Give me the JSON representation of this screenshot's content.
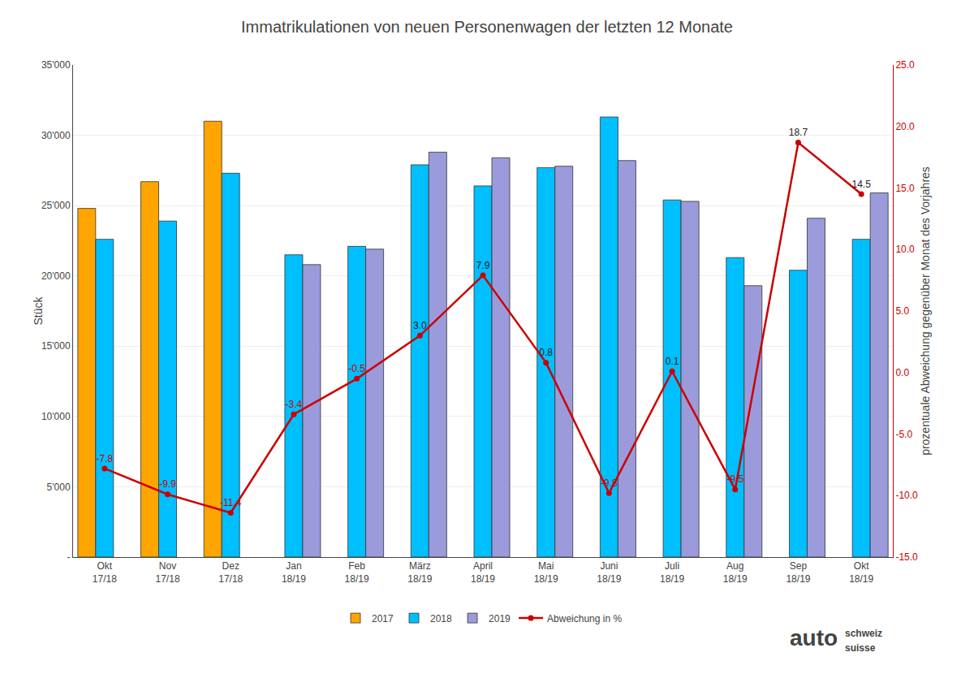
{
  "chart_data": {
    "type": "bar",
    "title": "Immatrikulationen von neuen Personenwagen der letzten 12 Monate",
    "categories": [
      "Okt\n17/18",
      "Nov\n17/18",
      "Dez\n17/18",
      "Jan\n18/19",
      "Feb\n18/19",
      "März\n18/19",
      "April\n18/19",
      "Mai\n18/19",
      "Juni\n18/19",
      "Juli\n18/19",
      "Aug\n18/19",
      "Sep\n18/19",
      "Okt\n18/19"
    ],
    "series": [
      {
        "name": "2017",
        "color": "#FFA500",
        "values": [
          24800,
          26700,
          31000,
          null,
          null,
          null,
          null,
          null,
          null,
          null,
          null,
          null,
          null
        ]
      },
      {
        "name": "2018",
        "color": "#00BFFF",
        "values": [
          22600,
          23900,
          27300,
          21500,
          22100,
          27900,
          26400,
          27700,
          31300,
          25400,
          21300,
          20400,
          22600
        ]
      },
      {
        "name": "2019",
        "color": "#9B9BDB",
        "values": [
          null,
          null,
          null,
          20800,
          21900,
          28800,
          28400,
          27800,
          28200,
          25300,
          19300,
          24100,
          25900
        ]
      },
      {
        "name": "Abweichung in %",
        "type": "line",
        "axis": "y2",
        "color": "#CC0000",
        "marker": "circle",
        "data_labels": true,
        "values": [
          -7.8,
          -9.9,
          -11.4,
          -3.4,
          -0.5,
          3.0,
          7.9,
          0.8,
          -9.8,
          0.1,
          -9.5,
          18.7,
          14.5
        ],
        "value_labels": [
          "-7.8",
          "-9.9",
          "-11.4",
          "-3.4",
          "-0.5",
          "3.0",
          "7.9",
          "0.8",
          "-9.8",
          "0.1",
          "-9.5",
          "18.7",
          "14.5"
        ]
      }
    ],
    "ylabel": "Stück",
    "y2label": "prozentuale Abweichung gegenüber Monat des Vorjahres",
    "ylim": [
      0,
      35000
    ],
    "yticks": [
      {
        "value": 0,
        "label": "-"
      },
      {
        "value": 5000,
        "label": "5'000"
      },
      {
        "value": 10000,
        "label": "10'000"
      },
      {
        "value": 15000,
        "label": "15'000"
      },
      {
        "value": 20000,
        "label": "20'000"
      },
      {
        "value": 25000,
        "label": "25'000"
      },
      {
        "value": 30000,
        "label": "30'000"
      },
      {
        "value": 35000,
        "label": "35'000"
      }
    ],
    "y2lim": [
      -15.0,
      25.0
    ],
    "y2ticks": [
      {
        "value": -15.0,
        "label": "-15.0"
      },
      {
        "value": -10.0,
        "label": "-10.0"
      },
      {
        "value": -5.0,
        "label": "-5.0"
      },
      {
        "value": 0.0,
        "label": "0.0"
      },
      {
        "value": 5.0,
        "label": "5.0"
      },
      {
        "value": 10.0,
        "label": "10.0"
      },
      {
        "value": 15.0,
        "label": "15.0"
      },
      {
        "value": 20.0,
        "label": "20.0"
      },
      {
        "value": 25.0,
        "label": "25.0"
      }
    ],
    "grid": true,
    "legend": "bottom",
    "annotations": [
      "auto",
      "schweiz",
      "suisse"
    ]
  }
}
